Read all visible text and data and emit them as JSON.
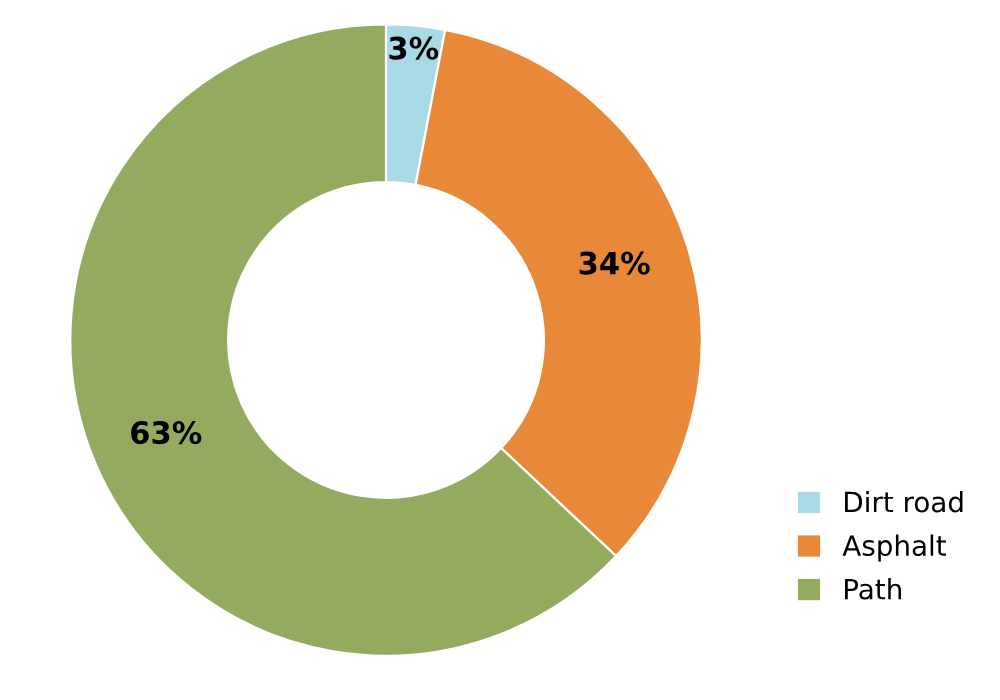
{
  "chart_data": {
    "type": "donut",
    "categories": [
      "Dirt road",
      "Asphalt",
      "Path"
    ],
    "values": [
      3,
      34,
      63
    ],
    "colors": [
      "#a9dbe6",
      "#e8893a",
      "#94aa5f"
    ],
    "value_labels": [
      "3%",
      "34%",
      "63%"
    ],
    "legend": "bottom right"
  }
}
